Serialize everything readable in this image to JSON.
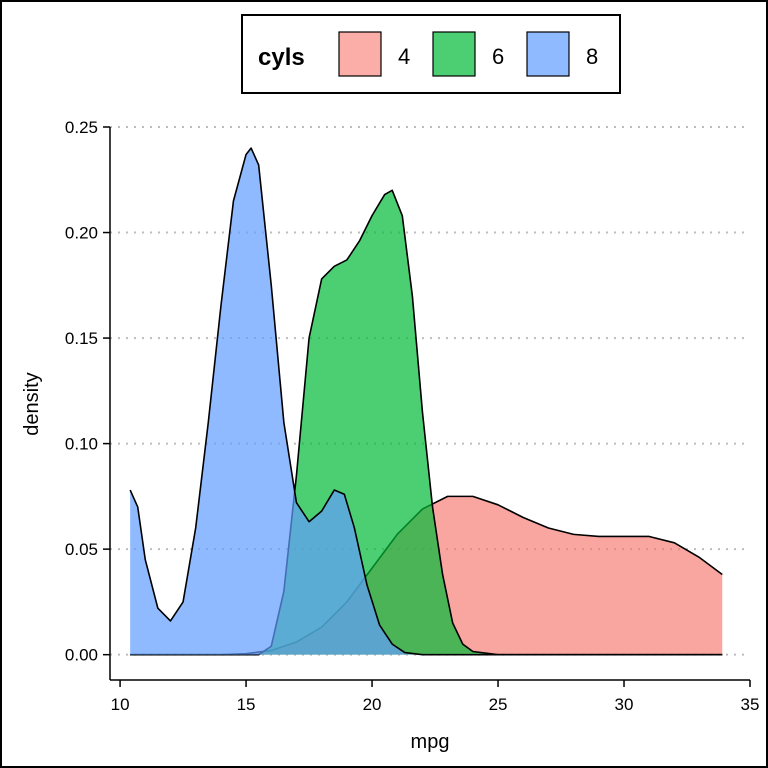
{
  "chart_data": {
    "type": "area",
    "title": "",
    "xlabel": "mpg",
    "ylabel": "density",
    "xlim": [
      9.6,
      35
    ],
    "ylim": [
      -0.012,
      0.25
    ],
    "x_ticks": [
      10,
      15,
      20,
      25,
      30,
      35
    ],
    "y_ticks": [
      0.0,
      0.05,
      0.1,
      0.15,
      0.2,
      0.25
    ],
    "y_tick_labels": [
      "0.00",
      "0.05",
      "0.10",
      "0.15",
      "0.20",
      "0.25"
    ],
    "grid": "horizontal dotted",
    "legend": {
      "title": "cyls",
      "position": "top"
    },
    "series": [
      {
        "name": "4",
        "color": "#F8766D",
        "x": [
          10.4,
          14.0,
          15.0,
          16.0,
          17.0,
          18.0,
          19.0,
          20.0,
          21.0,
          22.0,
          23.0,
          24.0,
          25.0,
          26.0,
          27.0,
          28.0,
          29.0,
          30.0,
          31.0,
          32.0,
          33.0,
          33.9
        ],
        "y": [
          0.0,
          0.0,
          0.0005,
          0.002,
          0.006,
          0.013,
          0.025,
          0.041,
          0.057,
          0.069,
          0.075,
          0.075,
          0.071,
          0.065,
          0.06,
          0.057,
          0.056,
          0.056,
          0.056,
          0.053,
          0.046,
          0.038
        ]
      },
      {
        "name": "6",
        "color": "#00BA38",
        "x": [
          10.4,
          15.5,
          16.0,
          16.5,
          17.0,
          17.5,
          18.0,
          18.5,
          19.0,
          19.5,
          20.0,
          20.5,
          20.8,
          21.2,
          21.6,
          22.0,
          22.4,
          22.8,
          23.2,
          23.6,
          24.0,
          25.0,
          33.9
        ],
        "y": [
          0.0,
          0.0,
          0.004,
          0.03,
          0.085,
          0.15,
          0.178,
          0.184,
          0.187,
          0.196,
          0.208,
          0.218,
          0.22,
          0.208,
          0.17,
          0.115,
          0.07,
          0.038,
          0.015,
          0.005,
          0.0015,
          0.0,
          0.0
        ]
      },
      {
        "name": "8",
        "color": "#619CFF",
        "x": [
          10.4,
          10.7,
          11.0,
          11.5,
          12.0,
          12.5,
          13.0,
          13.5,
          14.0,
          14.5,
          15.0,
          15.2,
          15.5,
          16.0,
          16.5,
          17.0,
          17.5,
          18.0,
          18.5,
          18.9,
          19.3,
          19.8,
          20.3,
          20.8,
          21.3,
          22.0,
          33.9
        ],
        "y": [
          0.078,
          0.07,
          0.045,
          0.022,
          0.016,
          0.025,
          0.06,
          0.11,
          0.165,
          0.215,
          0.237,
          0.24,
          0.232,
          0.175,
          0.11,
          0.072,
          0.063,
          0.068,
          0.078,
          0.076,
          0.06,
          0.033,
          0.014,
          0.005,
          0.001,
          0.0,
          0.0
        ]
      }
    ]
  }
}
